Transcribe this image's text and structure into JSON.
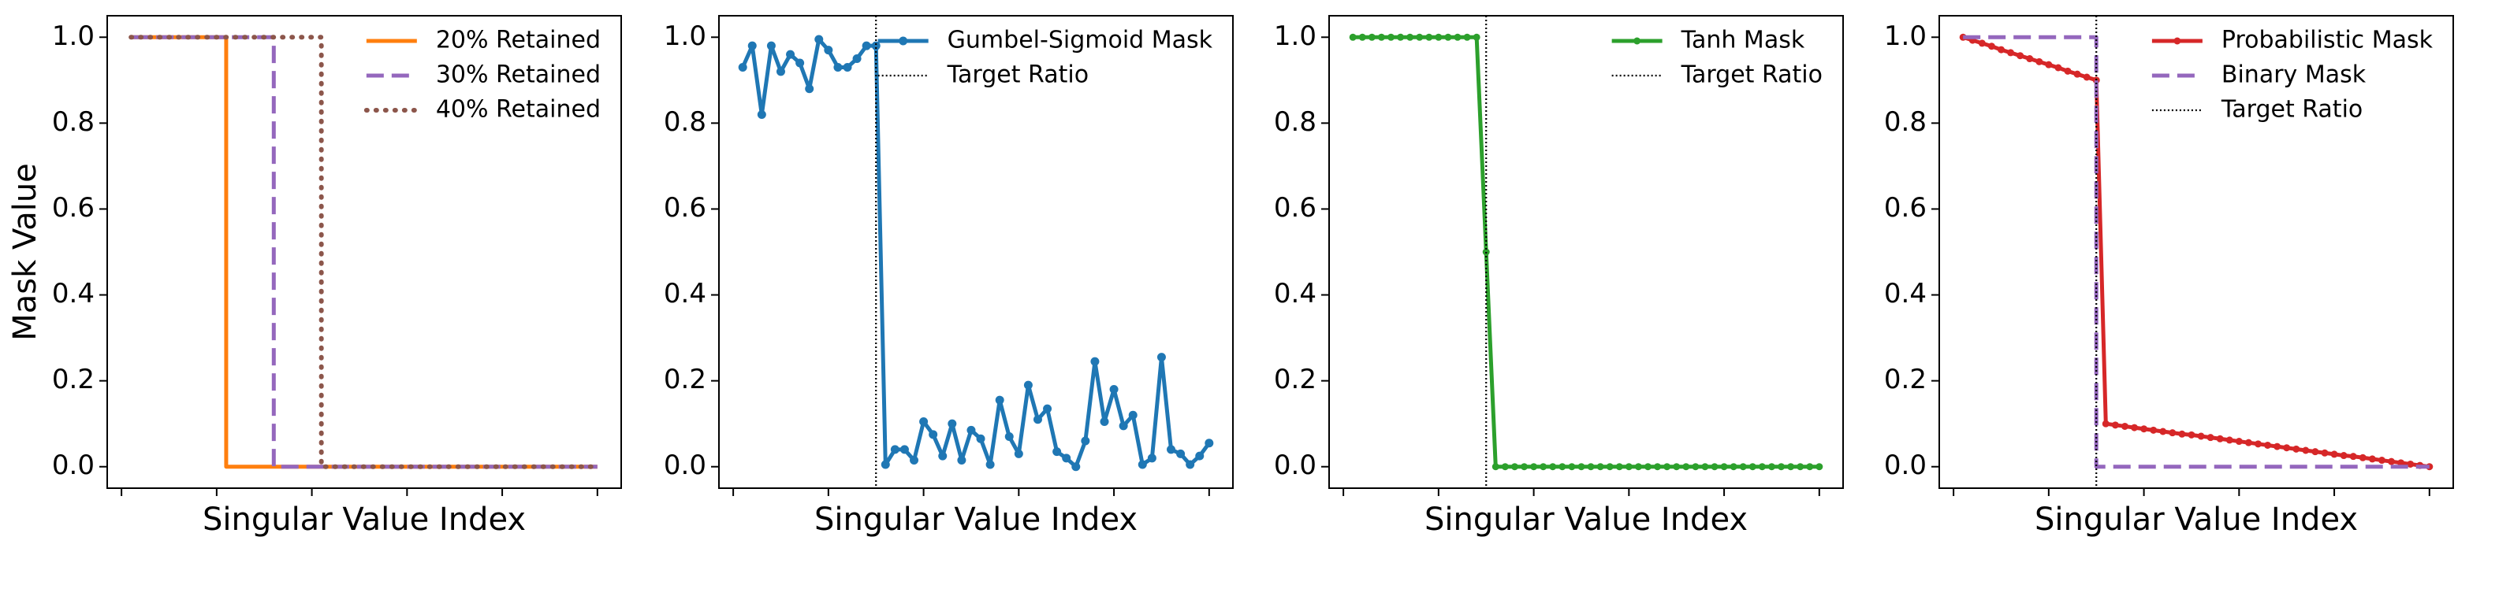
{
  "chart_data": [
    {
      "type": "line",
      "ylabel": "Mask Value",
      "xlabel": "Singular Value Index",
      "xlim": [
        -1.5,
        52.5
      ],
      "xticks": [
        0,
        10,
        20,
        30,
        40,
        50
      ],
      "ylim": [
        -0.05,
        1.05
      ],
      "yticks": [
        {
          "value": 0,
          "label": "0.0"
        },
        {
          "value": 0.2,
          "label": "0.2"
        },
        {
          "value": 0.4,
          "label": "0.4"
        },
        {
          "value": 0.6,
          "label": "0.6"
        },
        {
          "value": 0.8,
          "label": "0.8"
        },
        {
          "value": 1,
          "label": "1.0"
        }
      ],
      "legend": "upper right",
      "series": [
        {
          "name": "20% Retained",
          "color": "#ff7f0e",
          "style": "solid",
          "markers": false,
          "x": [
            1,
            11,
            11,
            50
          ],
          "values": [
            1,
            1,
            0,
            0
          ]
        },
        {
          "name": "30% Retained",
          "color": "#9467bd",
          "style": "dashed",
          "markers": false,
          "x": [
            1,
            16,
            16,
            50
          ],
          "values": [
            1,
            1,
            0,
            0
          ]
        },
        {
          "name": "40% Retained",
          "color": "#8c564b",
          "style": "dotted",
          "markers": false,
          "x": [
            1,
            21,
            21,
            50
          ],
          "values": [
            1,
            1,
            0,
            0
          ]
        }
      ],
      "vlines": []
    },
    {
      "type": "line",
      "xlabel": "Singular Value Index",
      "xlim": [
        -1.5,
        52.5
      ],
      "xticks": [
        0,
        10,
        20,
        30,
        40,
        50
      ],
      "ylim": [
        -0.05,
        1.05
      ],
      "yticks": [
        {
          "value": 0,
          "label": "0.0"
        },
        {
          "value": 0.2,
          "label": "0.2"
        },
        {
          "value": 0.4,
          "label": "0.4"
        },
        {
          "value": 0.6,
          "label": "0.6"
        },
        {
          "value": 0.8,
          "label": "0.8"
        },
        {
          "value": 1,
          "label": "1.0"
        }
      ],
      "legend": "upper right",
      "series": [
        {
          "name": "Gumbel-Sigmoid Mask",
          "color": "#1f77b4",
          "style": "solid",
          "markers": true,
          "x": [
            1,
            2,
            3,
            4,
            5,
            6,
            7,
            8,
            9,
            10,
            11,
            12,
            13,
            14,
            15,
            16,
            17,
            18,
            19,
            20,
            21,
            22,
            23,
            24,
            25,
            26,
            27,
            28,
            29,
            30,
            31,
            32,
            33,
            34,
            35,
            36,
            37,
            38,
            39,
            40,
            41,
            42,
            43,
            44,
            45,
            46,
            47,
            48,
            49,
            50
          ],
          "values": [
            0.93,
            0.98,
            0.82,
            0.98,
            0.92,
            0.96,
            0.94,
            0.88,
            0.995,
            0.97,
            0.93,
            0.93,
            0.95,
            0.98,
            0.98,
            0.005,
            0.04,
            0.04,
            0.015,
            0.105,
            0.075,
            0.025,
            0.1,
            0.015,
            0.085,
            0.065,
            0.005,
            0.155,
            0.07,
            0.03,
            0.19,
            0.11,
            0.135,
            0.035,
            0.02,
            0.0,
            0.06,
            0.245,
            0.105,
            0.18,
            0.095,
            0.12,
            0.005,
            0.02,
            0.255,
            0.04,
            0.03,
            0.005,
            0.025,
            0.055
          ]
        }
      ],
      "vlines": [
        {
          "name": "Target Ratio",
          "x": 15,
          "color": "#000000"
        }
      ]
    },
    {
      "type": "line",
      "xlabel": "Singular Value Index",
      "xlim": [
        -1.5,
        52.5
      ],
      "xticks": [
        0,
        10,
        20,
        30,
        40,
        50
      ],
      "ylim": [
        -0.05,
        1.05
      ],
      "yticks": [
        {
          "value": 0,
          "label": "0.0"
        },
        {
          "value": 0.2,
          "label": "0.2"
        },
        {
          "value": 0.4,
          "label": "0.4"
        },
        {
          "value": 0.6,
          "label": "0.6"
        },
        {
          "value": 0.8,
          "label": "0.8"
        },
        {
          "value": 1,
          "label": "1.0"
        }
      ],
      "legend": "upper right",
      "series": [
        {
          "name": "Tanh Mask",
          "color": "#2ca02c",
          "style": "solid",
          "markers": true,
          "x": [
            1,
            2,
            3,
            4,
            5,
            6,
            7,
            8,
            9,
            10,
            11,
            12,
            13,
            14,
            15,
            16,
            17,
            18,
            19,
            20,
            21,
            22,
            23,
            24,
            25,
            26,
            27,
            28,
            29,
            30,
            31,
            32,
            33,
            34,
            35,
            36,
            37,
            38,
            39,
            40,
            41,
            42,
            43,
            44,
            45,
            46,
            47,
            48,
            49,
            50
          ],
          "values": [
            1,
            1,
            1,
            1,
            1,
            1,
            1,
            1,
            1,
            1,
            1,
            1,
            1,
            1,
            0.5,
            0,
            0,
            0,
            0,
            0,
            0,
            0,
            0,
            0,
            0,
            0,
            0,
            0,
            0,
            0,
            0,
            0,
            0,
            0,
            0,
            0,
            0,
            0,
            0,
            0,
            0,
            0,
            0,
            0,
            0,
            0,
            0,
            0,
            0,
            0
          ]
        }
      ],
      "vlines": [
        {
          "name": "Target Ratio",
          "x": 15,
          "color": "#000000"
        }
      ]
    },
    {
      "type": "line",
      "xlabel": "Singular Value Index",
      "xlim": [
        -1.5,
        52.5
      ],
      "xticks": [
        0,
        10,
        20,
        30,
        40,
        50
      ],
      "ylim": [
        -0.05,
        1.05
      ],
      "yticks": [
        {
          "value": 0,
          "label": "0.0"
        },
        {
          "value": 0.2,
          "label": "0.2"
        },
        {
          "value": 0.4,
          "label": "0.4"
        },
        {
          "value": 0.6,
          "label": "0.6"
        },
        {
          "value": 0.8,
          "label": "0.8"
        },
        {
          "value": 1,
          "label": "1.0"
        }
      ],
      "legend": "upper right",
      "series": [
        {
          "name": "Probabilistic Mask",
          "color": "#d62728",
          "style": "solid",
          "markers": true,
          "x": [
            1,
            2,
            3,
            4,
            5,
            6,
            7,
            8,
            9,
            10,
            11,
            12,
            13,
            14,
            15,
            16,
            17,
            18,
            19,
            20,
            21,
            22,
            23,
            24,
            25,
            26,
            27,
            28,
            29,
            30,
            31,
            32,
            33,
            34,
            35,
            36,
            37,
            38,
            39,
            40,
            41,
            42,
            43,
            44,
            45,
            46,
            47,
            48,
            49,
            50
          ],
          "values": [
            1,
            0.993,
            0.986,
            0.979,
            0.971,
            0.964,
            0.957,
            0.95,
            0.943,
            0.936,
            0.929,
            0.921,
            0.914,
            0.907,
            0.9,
            0.1,
            0.097,
            0.094,
            0.091,
            0.088,
            0.085,
            0.082,
            0.079,
            0.076,
            0.074,
            0.071,
            0.068,
            0.065,
            0.062,
            0.059,
            0.056,
            0.053,
            0.05,
            0.047,
            0.044,
            0.041,
            0.038,
            0.035,
            0.032,
            0.029,
            0.026,
            0.024,
            0.021,
            0.018,
            0.015,
            0.012,
            0.009,
            0.006,
            0.003,
            0
          ]
        },
        {
          "name": "Binary Mask",
          "color": "#9467bd",
          "style": "dashed",
          "markers": false,
          "x": [
            1,
            15,
            15,
            50
          ],
          "values": [
            1,
            1,
            0,
            0
          ]
        }
      ],
      "vlines": [
        {
          "name": "Target Ratio",
          "x": 15,
          "color": "#000000"
        }
      ]
    }
  ]
}
